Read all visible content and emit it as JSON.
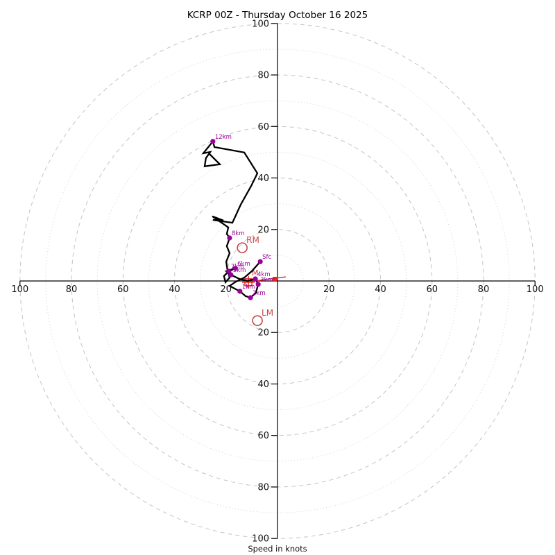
{
  "title": "KCRP 00Z - Thursday October 16 2025",
  "xlabel": "Speed in knots",
  "chart_data": {
    "type": "line",
    "subtype": "hodograph (polar wind profile, u/v in knots)",
    "units": "knots",
    "title": "KCRP 00Z - Thursday October 16 2025",
    "radial_axis_label": "Speed in knots",
    "max_speed": 100,
    "ring_values_dashed": [
      20,
      40,
      60,
      80,
      100
    ],
    "ring_values_dotted": [
      10,
      30,
      50,
      70,
      90
    ],
    "axis_tick_values": [
      20,
      40,
      60,
      80,
      100
    ],
    "grid": "polar rings, dashed every 20 kt, dotted every 10 kt",
    "colors": {
      "trace": "#000000",
      "height_markers": "#990099",
      "storm_markers": "#c84444",
      "mean_wind_marker": "#e42222",
      "rings_dashed": "#c4c4c4",
      "rings_dotted": "#d9d9d9"
    },
    "trace_uv_knots": [
      [
        -6.7,
        7.5
      ],
      [
        -10.0,
        3.8
      ],
      [
        -12.9,
        1.3
      ],
      [
        -16.2,
        -0.3
      ],
      [
        -18.6,
        -1.9
      ],
      [
        -16.2,
        -3.2
      ],
      [
        -14.6,
        -4.0
      ],
      [
        -12.4,
        -5.9
      ],
      [
        -10.5,
        -6.5
      ],
      [
        -8.4,
        -4.6
      ],
      [
        -7.5,
        -1.3
      ],
      [
        -8.6,
        0.8
      ],
      [
        -11.6,
        0.0
      ],
      [
        -14.8,
        0.8
      ],
      [
        -18.1,
        2.4
      ],
      [
        -19.9,
        3.8
      ],
      [
        -16.4,
        4.9
      ],
      [
        -18.9,
        3.8
      ],
      [
        -20.8,
        1.9
      ],
      [
        -20.2,
        -0.5
      ],
      [
        -18.6,
        1.3
      ],
      [
        -19.4,
        4.0
      ],
      [
        -19.9,
        7.5
      ],
      [
        -18.6,
        10.8
      ],
      [
        -19.7,
        13.5
      ],
      [
        -18.6,
        16.7
      ],
      [
        -19.7,
        18.3
      ],
      [
        -19.1,
        20.8
      ],
      [
        -25.3,
        25.1
      ],
      [
        -21.0,
        23.5
      ],
      [
        -25.1,
        23.7
      ],
      [
        -17.5,
        22.6
      ],
      [
        -14.3,
        29.6
      ],
      [
        -10.2,
        36.9
      ],
      [
        -7.8,
        41.8
      ],
      [
        -12.9,
        49.9
      ],
      [
        -24.5,
        52.0
      ],
      [
        -25.1,
        54.2
      ],
      [
        -28.8,
        49.6
      ],
      [
        -26.1,
        50.1
      ],
      [
        -27.8,
        47.7
      ],
      [
        -28.3,
        44.5
      ],
      [
        -22.4,
        45.3
      ],
      [
        -26.4,
        49.3
      ]
    ],
    "height_markers": [
      {
        "label": "Sfc",
        "u": -6.7,
        "v": 7.5
      },
      {
        "label": "1km",
        "u": -14.6,
        "v": -4.0
      },
      {
        "label": "2km",
        "u": -10.5,
        "v": -6.5
      },
      {
        "label": "3km",
        "u": -7.5,
        "v": -1.3
      },
      {
        "label": "4km",
        "u": -8.6,
        "v": 0.8
      },
      {
        "label": "5km",
        "u": -18.1,
        "v": 2.4
      },
      {
        "label": "6km",
        "u": -16.4,
        "v": 4.9
      },
      {
        "label": "7km",
        "u": -18.9,
        "v": 3.8
      },
      {
        "label": "8km",
        "u": -18.6,
        "v": 16.7
      },
      {
        "label": "12km",
        "u": -25.1,
        "v": 54.2
      }
    ],
    "storm_motion_markers": [
      {
        "label": "RM",
        "u": -13.7,
        "v": 12.9,
        "style": "open-circle"
      },
      {
        "label": "LM",
        "u": -7.8,
        "v": -15.4,
        "style": "open-circle"
      },
      {
        "label": "M",
        "u": -11.3,
        "v": -0.5,
        "style": "square-cross"
      }
    ],
    "mean_wind_line_uv": [
      [
        -10.8,
        -0.3
      ],
      [
        3.2,
        1.6
      ]
    ],
    "mean_wind_small_square_uv": [
      -1.1,
      0.8
    ]
  }
}
